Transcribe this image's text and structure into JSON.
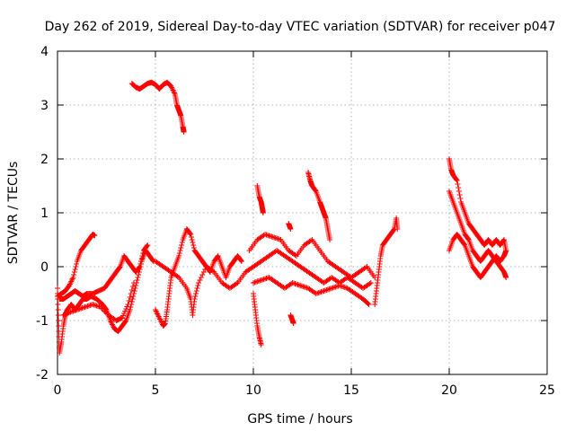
{
  "chart_data": {
    "type": "scatter",
    "title": "Day 262 of 2019, Sidereal Day-to-day VTEC variation (SDTVAR) for receiver p047",
    "xlabel": "GPS time / hours",
    "ylabel": "SDTVAR / TECUs",
    "xlim": [
      0,
      25
    ],
    "ylim": [
      -2,
      4
    ],
    "xticks": [
      0,
      5,
      10,
      15,
      20,
      25
    ],
    "yticks": [
      -2,
      -1,
      0,
      1,
      2,
      3,
      4
    ],
    "grid": true,
    "marker": "+",
    "marker_color": "#ff0000",
    "segments": [
      {
        "name": "early-low",
        "points": [
          [
            0.0,
            -0.4
          ],
          [
            0.05,
            -1.0
          ],
          [
            0.1,
            -1.6
          ],
          [
            0.2,
            -1.4
          ],
          [
            0.3,
            -1.1
          ],
          [
            0.4,
            -0.9
          ],
          [
            0.5,
            -0.8
          ],
          [
            0.7,
            -0.7
          ],
          [
            0.9,
            -0.8
          ],
          [
            1.1,
            -0.7
          ],
          [
            1.3,
            -0.6
          ],
          [
            1.5,
            -0.6
          ],
          [
            1.7,
            -0.55
          ],
          [
            2.0,
            -0.6
          ],
          [
            2.3,
            -0.7
          ],
          [
            2.5,
            -0.8
          ],
          [
            2.7,
            -1.0
          ],
          [
            2.9,
            -1.15
          ],
          [
            3.1,
            -1.2
          ],
          [
            3.3,
            -1.1
          ],
          [
            3.5,
            -1.0
          ],
          [
            3.7,
            -0.8
          ],
          [
            3.9,
            -0.5
          ],
          [
            4.1,
            -0.2
          ],
          [
            4.3,
            0.1
          ],
          [
            4.5,
            0.3
          ],
          [
            4.7,
            0.2
          ],
          [
            4.9,
            0.1
          ]
        ]
      },
      {
        "name": "early-high",
        "points": [
          [
            0.0,
            -0.55
          ],
          [
            0.2,
            -0.5
          ],
          [
            0.4,
            -0.45
          ],
          [
            0.6,
            -0.35
          ],
          [
            0.8,
            -0.2
          ],
          [
            1.0,
            0.1
          ],
          [
            1.2,
            0.3
          ],
          [
            1.4,
            0.4
          ],
          [
            1.6,
            0.5
          ],
          [
            1.8,
            0.6
          ],
          [
            1.9,
            0.58
          ]
        ]
      },
      {
        "name": "early-mid",
        "points": [
          [
            0.1,
            -0.6
          ],
          [
            0.3,
            -0.6
          ],
          [
            0.5,
            -0.55
          ],
          [
            0.7,
            -0.5
          ],
          [
            0.9,
            -0.45
          ],
          [
            1.1,
            -0.5
          ],
          [
            1.3,
            -0.55
          ],
          [
            1.5,
            -0.5
          ],
          [
            1.8,
            -0.5
          ],
          [
            2.1,
            -0.45
          ],
          [
            2.4,
            -0.4
          ],
          [
            2.6,
            -0.3
          ],
          [
            2.8,
            -0.2
          ],
          [
            3.0,
            -0.1
          ],
          [
            3.2,
            0.0
          ],
          [
            3.4,
            0.2
          ],
          [
            3.6,
            0.1
          ],
          [
            3.8,
            0.0
          ],
          [
            4.0,
            -0.1
          ],
          [
            4.2,
            0.0
          ],
          [
            4.4,
            0.3
          ],
          [
            4.6,
            0.4
          ]
        ]
      },
      {
        "name": "early-lower",
        "points": [
          [
            0.3,
            -0.9
          ],
          [
            0.6,
            -0.85
          ],
          [
            1.0,
            -0.8
          ],
          [
            1.4,
            -0.75
          ],
          [
            1.8,
            -0.7
          ],
          [
            2.2,
            -0.75
          ],
          [
            2.6,
            -0.9
          ],
          [
            3.0,
            -1.0
          ],
          [
            3.3,
            -0.95
          ],
          [
            3.6,
            -0.7
          ],
          [
            3.9,
            -0.3
          ]
        ]
      },
      {
        "name": "high-arc",
        "points": [
          [
            3.8,
            3.4
          ],
          [
            4.0,
            3.33
          ],
          [
            4.2,
            3.3
          ],
          [
            4.4,
            3.35
          ],
          [
            4.6,
            3.4
          ],
          [
            4.8,
            3.42
          ],
          [
            5.0,
            3.38
          ],
          [
            5.2,
            3.3
          ],
          [
            5.4,
            3.38
          ],
          [
            5.6,
            3.42
          ],
          [
            5.8,
            3.35
          ],
          [
            6.0,
            3.2
          ],
          [
            6.1,
            3.0
          ],
          [
            6.2,
            2.9
          ],
          [
            6.3,
            2.8
          ],
          [
            6.4,
            2.6
          ],
          [
            6.45,
            2.5
          ]
        ]
      },
      {
        "name": "dip-near-5",
        "points": [
          [
            5.0,
            -0.8
          ],
          [
            5.2,
            -0.95
          ],
          [
            5.4,
            -1.1
          ],
          [
            5.5,
            -1.05
          ],
          [
            5.6,
            -0.8
          ],
          [
            5.7,
            -0.5
          ],
          [
            5.8,
            -0.2
          ],
          [
            6.0,
            0.0
          ],
          [
            6.2,
            0.2
          ],
          [
            6.4,
            0.5
          ],
          [
            6.6,
            0.7
          ],
          [
            6.8,
            0.6
          ],
          [
            7.0,
            0.3
          ],
          [
            7.2,
            0.2
          ],
          [
            7.4,
            0.1
          ],
          [
            7.6,
            0.0
          ],
          [
            7.8,
            -0.1
          ],
          [
            8.0,
            0.1
          ],
          [
            8.2,
            0.2
          ],
          [
            8.4,
            0.0
          ],
          [
            8.6,
            -0.2
          ],
          [
            8.8,
            0.0
          ],
          [
            9.0,
            0.1
          ],
          [
            9.2,
            0.2
          ],
          [
            9.4,
            0.1
          ]
        ]
      },
      {
        "name": "mid-band",
        "points": [
          [
            5.0,
            0.1
          ],
          [
            5.4,
            0.0
          ],
          [
            5.8,
            -0.1
          ],
          [
            6.2,
            -0.2
          ],
          [
            6.6,
            -0.4
          ],
          [
            6.8,
            -0.6
          ],
          [
            6.9,
            -0.9
          ],
          [
            7.0,
            -0.6
          ],
          [
            7.2,
            -0.3
          ],
          [
            7.6,
            0.0
          ],
          [
            8.0,
            -0.1
          ],
          [
            8.4,
            -0.3
          ],
          [
            8.8,
            -0.4
          ],
          [
            9.2,
            -0.3
          ],
          [
            9.6,
            -0.1
          ],
          [
            10.0,
            0.0
          ],
          [
            10.4,
            0.1
          ],
          [
            10.8,
            0.2
          ],
          [
            11.2,
            0.3
          ],
          [
            11.6,
            0.2
          ],
          [
            12.0,
            0.1
          ],
          [
            12.4,
            0.0
          ],
          [
            12.8,
            -0.1
          ],
          [
            13.2,
            -0.2
          ],
          [
            13.6,
            -0.3
          ],
          [
            14.0,
            -0.2
          ],
          [
            14.4,
            -0.3
          ],
          [
            14.8,
            -0.2
          ],
          [
            15.2,
            -0.3
          ],
          [
            15.6,
            -0.4
          ],
          [
            16.0,
            -0.3
          ]
        ]
      },
      {
        "name": "upper-band",
        "points": [
          [
            9.8,
            0.3
          ],
          [
            10.2,
            0.5
          ],
          [
            10.6,
            0.6
          ],
          [
            11.0,
            0.55
          ],
          [
            11.4,
            0.5
          ],
          [
            11.8,
            0.3
          ],
          [
            12.2,
            0.2
          ],
          [
            12.6,
            0.4
          ],
          [
            13.0,
            0.5
          ],
          [
            13.4,
            0.3
          ],
          [
            13.8,
            0.1
          ],
          [
            14.2,
            0.0
          ],
          [
            14.6,
            -0.1
          ],
          [
            15.0,
            -0.2
          ],
          [
            15.4,
            -0.1
          ],
          [
            15.8,
            0.0
          ],
          [
            16.2,
            -0.2
          ]
        ]
      },
      {
        "name": "lower-band",
        "points": [
          [
            10.0,
            -0.3
          ],
          [
            10.4,
            -0.25
          ],
          [
            10.8,
            -0.2
          ],
          [
            11.2,
            -0.3
          ],
          [
            11.6,
            -0.4
          ],
          [
            12.0,
            -0.3
          ],
          [
            12.4,
            -0.35
          ],
          [
            12.8,
            -0.4
          ],
          [
            13.2,
            -0.5
          ],
          [
            13.6,
            -0.45
          ],
          [
            14.0,
            -0.4
          ],
          [
            14.4,
            -0.35
          ],
          [
            14.8,
            -0.4
          ],
          [
            15.2,
            -0.5
          ],
          [
            15.6,
            -0.6
          ],
          [
            15.9,
            -0.7
          ]
        ]
      },
      {
        "name": "spike-10",
        "points": [
          [
            10.2,
            1.5
          ],
          [
            10.3,
            1.3
          ],
          [
            10.4,
            1.2
          ],
          [
            10.45,
            1.1
          ],
          [
            10.5,
            1.0
          ]
        ]
      },
      {
        "name": "spike-12p8",
        "points": [
          [
            12.8,
            1.75
          ],
          [
            12.9,
            1.6
          ],
          [
            13.0,
            1.5
          ],
          [
            13.2,
            1.4
          ],
          [
            13.4,
            1.2
          ],
          [
            13.5,
            1.1
          ],
          [
            13.6,
            1.0
          ],
          [
            13.7,
            0.9
          ],
          [
            13.8,
            0.7
          ],
          [
            13.9,
            0.5
          ]
        ]
      },
      {
        "name": "small-11p8",
        "points": [
          [
            11.8,
            0.8
          ],
          [
            11.9,
            0.7
          ]
        ]
      },
      {
        "name": "drop-10",
        "points": [
          [
            10.0,
            -0.5
          ],
          [
            10.1,
            -0.8
          ],
          [
            10.2,
            -1.1
          ],
          [
            10.3,
            -1.3
          ],
          [
            10.4,
            -1.45
          ]
        ]
      },
      {
        "name": "drop-12",
        "points": [
          [
            11.9,
            -0.9
          ],
          [
            12.0,
            -1.0
          ],
          [
            12.05,
            -1.05
          ]
        ]
      },
      {
        "name": "late-16",
        "points": [
          [
            16.2,
            -0.7
          ],
          [
            16.3,
            -0.4
          ],
          [
            16.4,
            -0.1
          ],
          [
            16.5,
            0.2
          ],
          [
            16.6,
            0.4
          ],
          [
            16.8,
            0.5
          ],
          [
            17.0,
            0.6
          ],
          [
            17.2,
            0.7
          ],
          [
            17.3,
            0.9
          ],
          [
            17.35,
            0.7
          ]
        ]
      },
      {
        "name": "late-20-upper",
        "points": [
          [
            20.0,
            2.0
          ],
          [
            20.1,
            1.8
          ],
          [
            20.2,
            1.7
          ],
          [
            20.4,
            1.6
          ],
          [
            20.6,
            1.2
          ],
          [
            20.8,
            1.0
          ],
          [
            21.0,
            0.8
          ],
          [
            21.2,
            0.7
          ],
          [
            21.4,
            0.6
          ],
          [
            21.6,
            0.5
          ],
          [
            21.8,
            0.4
          ],
          [
            22.0,
            0.5
          ],
          [
            22.2,
            0.4
          ],
          [
            22.4,
            0.5
          ],
          [
            22.6,
            0.4
          ],
          [
            22.8,
            0.5
          ],
          [
            22.9,
            0.3
          ]
        ]
      },
      {
        "name": "late-20-mid",
        "points": [
          [
            20.0,
            1.4
          ],
          [
            20.2,
            1.2
          ],
          [
            20.4,
            1.0
          ],
          [
            20.6,
            0.8
          ],
          [
            20.8,
            0.6
          ],
          [
            21.0,
            0.5
          ],
          [
            21.2,
            0.3
          ],
          [
            21.4,
            0.2
          ],
          [
            21.6,
            0.1
          ],
          [
            21.8,
            0.2
          ],
          [
            22.0,
            0.3
          ],
          [
            22.2,
            0.2
          ],
          [
            22.4,
            0.1
          ],
          [
            22.6,
            0.0
          ],
          [
            22.8,
            -0.1
          ],
          [
            22.9,
            -0.2
          ]
        ]
      },
      {
        "name": "late-20-lower",
        "points": [
          [
            20.0,
            0.3
          ],
          [
            20.2,
            0.5
          ],
          [
            20.4,
            0.6
          ],
          [
            20.6,
            0.5
          ],
          [
            20.8,
            0.4
          ],
          [
            21.0,
            0.2
          ],
          [
            21.2,
            0.0
          ],
          [
            21.4,
            -0.1
          ],
          [
            21.6,
            -0.2
          ],
          [
            21.8,
            -0.1
          ],
          [
            22.0,
            0.0
          ],
          [
            22.2,
            0.1
          ],
          [
            22.4,
            0.2
          ],
          [
            22.6,
            0.1
          ],
          [
            22.8,
            0.2
          ],
          [
            22.9,
            0.3
          ]
        ]
      }
    ]
  }
}
